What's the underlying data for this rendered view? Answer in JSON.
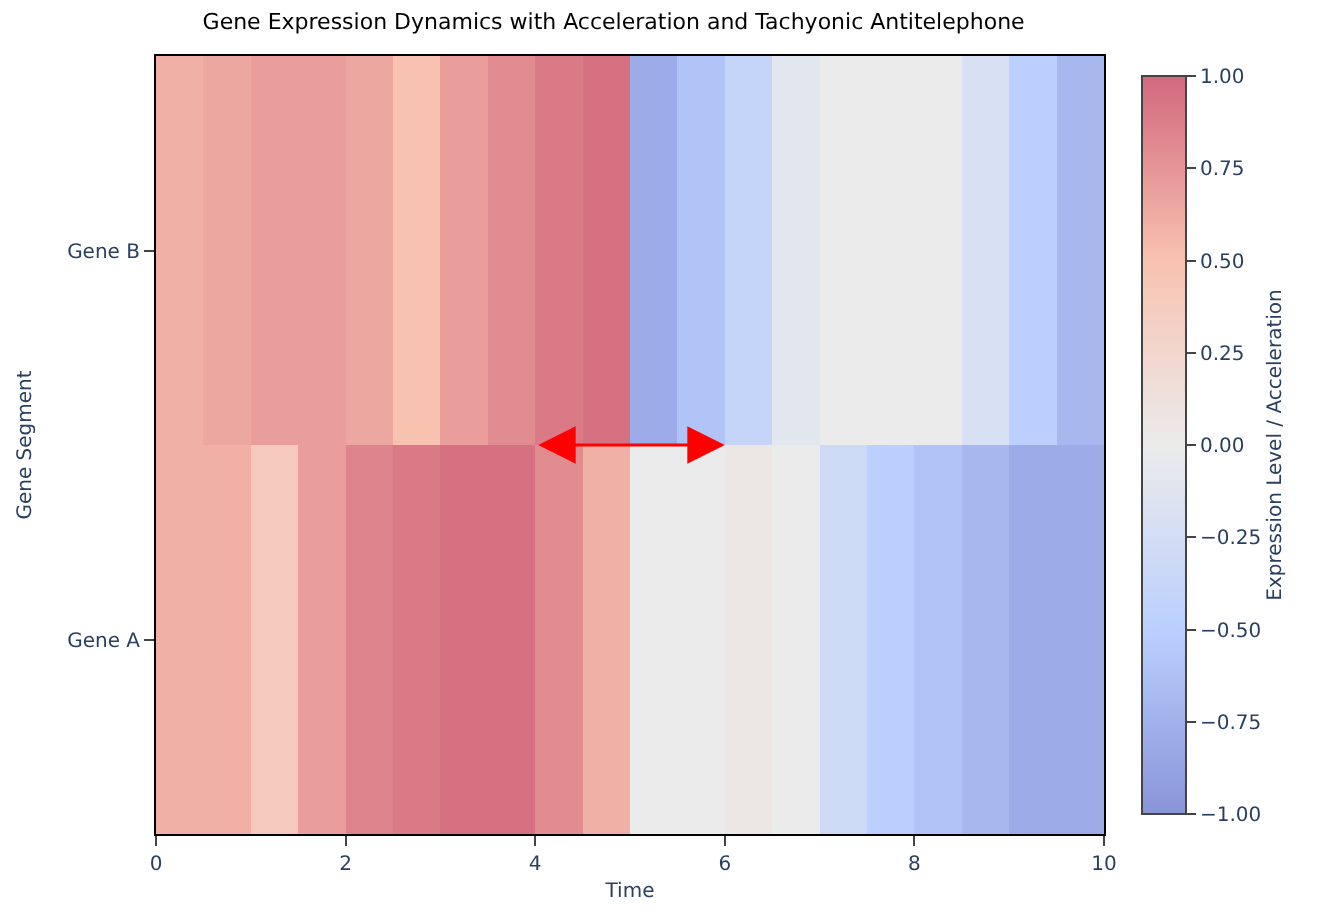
{
  "chart_data": {
    "type": "heatmap",
    "title": "Gene Expression Dynamics with Acceleration and Tachyonic Antitelephone",
    "xlabel": "Time",
    "ylabel": "Gene Segment",
    "clabel": "Expression Level / Acceleration",
    "x": [
      0.25,
      0.75,
      1.25,
      1.75,
      2.25,
      2.75,
      3.25,
      3.75,
      4.25,
      4.75,
      5.25,
      5.75,
      6.25,
      6.75,
      7.25,
      7.75,
      8.25,
      8.75,
      9.25,
      9.75
    ],
    "cells": [
      [
        0.6,
        0.65,
        0.7,
        0.7,
        0.65,
        0.5,
        0.7,
        0.8,
        0.9,
        0.95,
        -0.8,
        -0.6,
        -0.4,
        -0.1,
        0.0,
        0.0,
        0.0,
        -0.2,
        -0.5,
        -0.7
      ],
      [
        0.6,
        0.6,
        0.4,
        0.7,
        0.85,
        0.9,
        0.95,
        0.95,
        0.8,
        0.6,
        0.0,
        0.0,
        0.05,
        0.0,
        -0.3,
        -0.5,
        -0.6,
        -0.7,
        -0.8,
        -0.8
      ]
    ],
    "xlim": [
      0,
      10
    ],
    "xticks": [
      0,
      2,
      4,
      6,
      8,
      10
    ],
    "y_categories": [
      "Gene B",
      "Gene A"
    ],
    "clim": [
      -1,
      1
    ],
    "cticks": [
      {
        "value": 1,
        "label": "1.00"
      },
      {
        "value": 0.75,
        "label": "0.75"
      },
      {
        "value": 0.5,
        "label": "0.50"
      },
      {
        "value": 0.25,
        "label": "0.25"
      },
      {
        "value": 0,
        "label": "0.00"
      },
      {
        "value": -0.25,
        "label": "−0.25"
      },
      {
        "value": -0.5,
        "label": "−0.50"
      },
      {
        "value": -0.75,
        "label": "−0.75"
      },
      {
        "value": -1,
        "label": "−1.00"
      }
    ]
  }
}
